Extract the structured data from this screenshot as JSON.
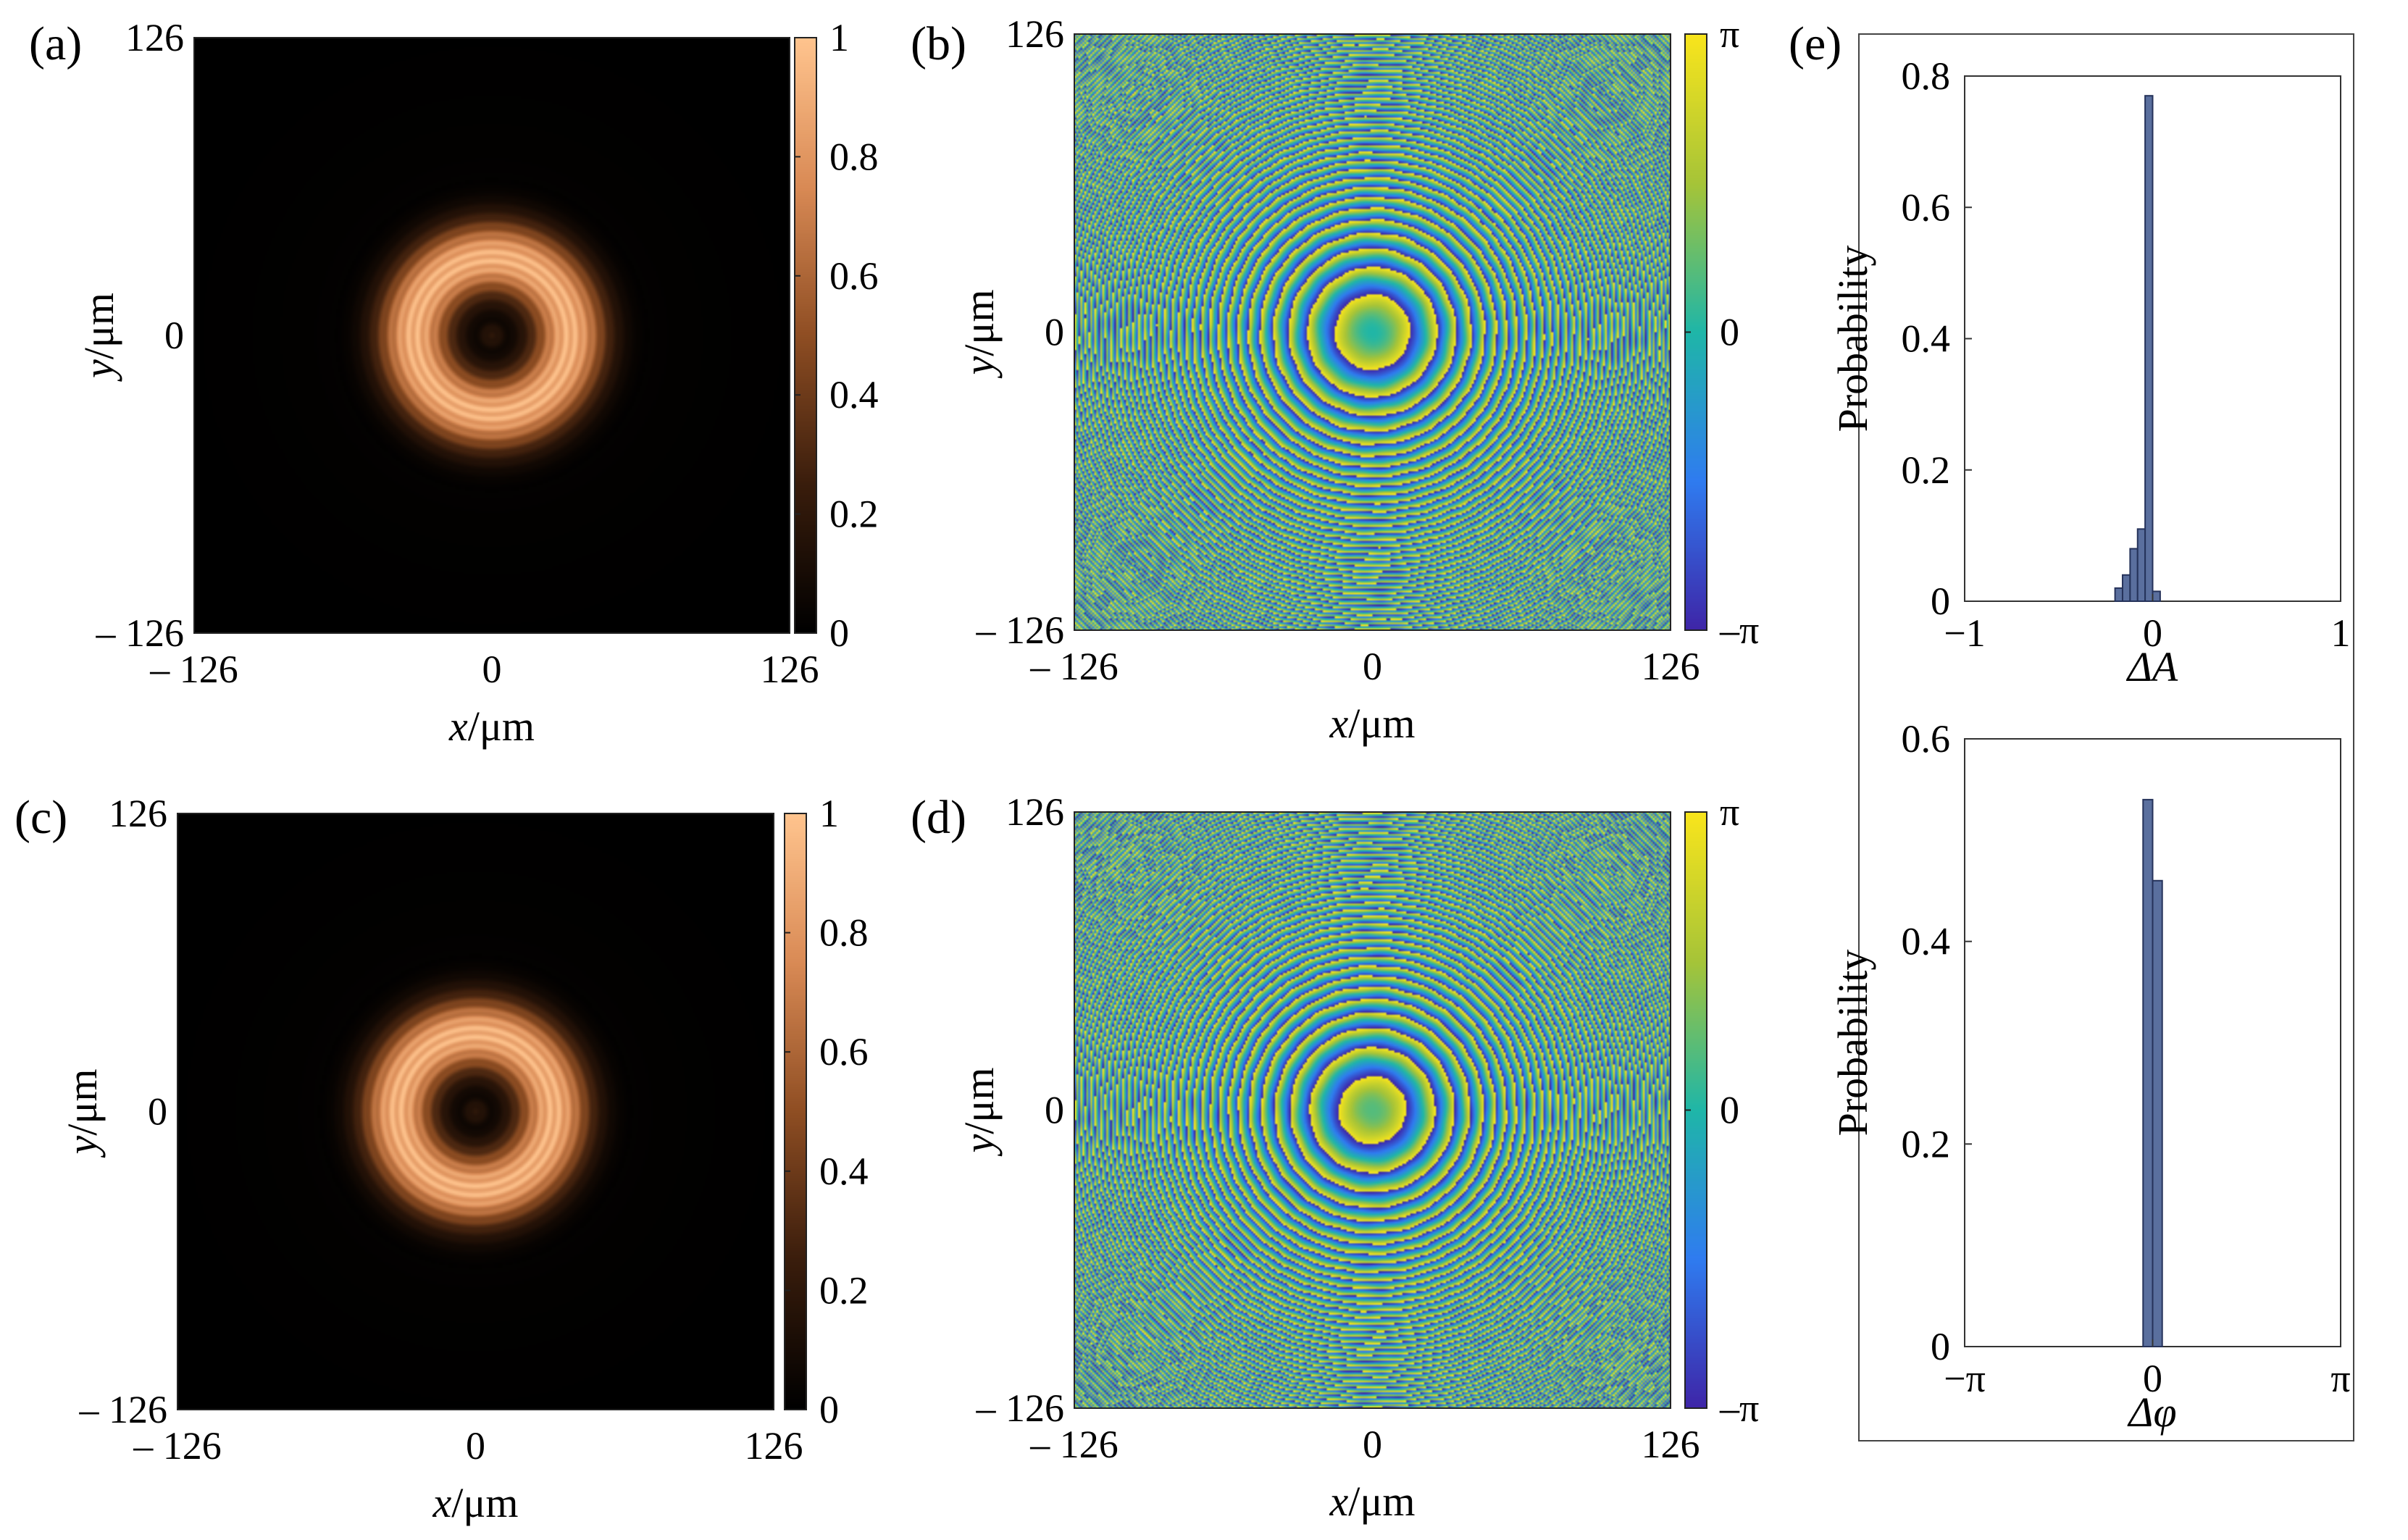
{
  "colors": {
    "background": "#ffffff",
    "bar_fill": "#5a6f9e",
    "bar_stroke": "#25325a",
    "amplitude_map": [
      "#000000",
      "#3a1d0c",
      "#8f4e23",
      "#d98a55",
      "#ffc48e"
    ],
    "phase_map": [
      "#3e26a8",
      "#2f7cf0",
      "#1fb6a8",
      "#a6c438",
      "#f9e51c"
    ]
  },
  "chart_data": [
    {
      "id": "a",
      "panel_label": "(a)",
      "type": "heatmap",
      "quantity": "amplitude",
      "xlabel_var": "x",
      "xlabel_unit": "/μm",
      "ylabel_var": "y",
      "ylabel_unit": "/μm",
      "xlim": [
        -126,
        126
      ],
      "ylim": [
        -126,
        126
      ],
      "xticks": [
        "– 126",
        "0",
        "126"
      ],
      "yticks": [
        "126",
        "0",
        "– 126"
      ],
      "colorbar": {
        "range": [
          0,
          1
        ],
        "ticks": [
          "1",
          "0.8",
          "0.6",
          "0.4",
          "0.2",
          "0"
        ]
      },
      "ring": {
        "inner_radius": 16,
        "peak_radius": 33,
        "outer_radius": 56
      }
    },
    {
      "id": "b",
      "panel_label": "(b)",
      "type": "heatmap",
      "quantity": "phase",
      "xlabel_var": "x",
      "xlabel_unit": "/μm",
      "ylabel_var": "y",
      "ylabel_unit": "/μm",
      "xlim": [
        -126,
        126
      ],
      "ylim": [
        -126,
        126
      ],
      "xticks": [
        "– 126",
        "0",
        "126"
      ],
      "yticks": [
        "126",
        "0",
        "– 126"
      ],
      "colorbar": {
        "range": [
          -3.1416,
          3.1416
        ],
        "ticks": [
          "π",
          "0",
          "–π"
        ]
      }
    },
    {
      "id": "c",
      "panel_label": "(c)",
      "type": "heatmap",
      "quantity": "amplitude",
      "xlabel_var": "x",
      "xlabel_unit": "/μm",
      "ylabel_var": "y",
      "ylabel_unit": "/μm",
      "xlim": [
        -126,
        126
      ],
      "ylim": [
        -126,
        126
      ],
      "xticks": [
        "– 126",
        "0",
        "126"
      ],
      "yticks": [
        "126",
        "0",
        "– 126"
      ],
      "colorbar": {
        "range": [
          0,
          1
        ],
        "ticks": [
          "1",
          "0.8",
          "0.6",
          "0.4",
          "0.2",
          "0"
        ]
      },
      "ring": {
        "inner_radius": 16,
        "peak_radius": 33,
        "outer_radius": 56
      }
    },
    {
      "id": "d",
      "panel_label": "(d)",
      "type": "heatmap",
      "quantity": "phase",
      "xlabel_var": "x",
      "xlabel_unit": "/μm",
      "ylabel_var": "y",
      "ylabel_unit": "/μm",
      "xlim": [
        -126,
        126
      ],
      "ylim": [
        -126,
        126
      ],
      "xticks": [
        "– 126",
        "0",
        "126"
      ],
      "yticks": [
        "126",
        "0",
        "– 126"
      ],
      "colorbar": {
        "range": [
          -3.1416,
          3.1416
        ],
        "ticks": [
          "π",
          "0",
          "–π"
        ]
      }
    },
    {
      "id": "e1",
      "panel_label": "(e)",
      "type": "bar",
      "xlabel": "ΔA",
      "ylabel": "Probability",
      "xlim": [
        -1,
        1
      ],
      "ylim": [
        0,
        0.8
      ],
      "xticks": [
        -1,
        0,
        1
      ],
      "xtick_labels": [
        "−1",
        "0",
        "1"
      ],
      "yticks": [
        0,
        0.2,
        0.4,
        0.6,
        0.8
      ],
      "ytick_labels": [
        "0",
        "0.2",
        "0.4",
        "0.6",
        "0.8"
      ],
      "bin_width": 0.04,
      "bins": [
        {
          "x": -0.18,
          "p": 0.02
        },
        {
          "x": -0.14,
          "p": 0.04
        },
        {
          "x": -0.1,
          "p": 0.08
        },
        {
          "x": -0.06,
          "p": 0.11
        },
        {
          "x": -0.02,
          "p": 0.77
        },
        {
          "x": 0.02,
          "p": 0.015
        }
      ]
    },
    {
      "id": "e2",
      "panel_label": "",
      "type": "bar",
      "xlabel": "Δφ",
      "ylabel": "Probability",
      "xlim": [
        -3.1416,
        3.1416
      ],
      "ylim": [
        0,
        0.6
      ],
      "xticks": [
        -3.1416,
        0,
        3.1416
      ],
      "xtick_labels": [
        "−π",
        "0",
        "π"
      ],
      "yticks": [
        0,
        0.2,
        0.4,
        0.6
      ],
      "ytick_labels": [
        "0",
        "0.2",
        "0.4",
        "0.6"
      ],
      "bin_width": 0.16,
      "bins": [
        {
          "x": -0.08,
          "p": 0.54
        },
        {
          "x": 0.08,
          "p": 0.46
        }
      ]
    }
  ]
}
